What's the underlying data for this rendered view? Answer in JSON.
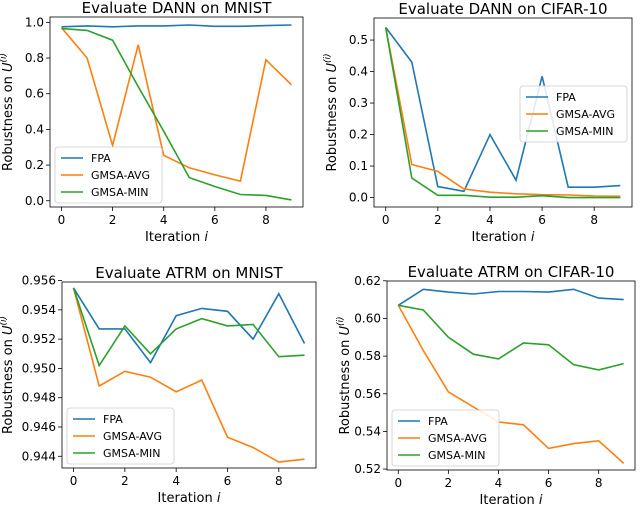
{
  "chart_data": [
    {
      "type": "line",
      "title": "Evaluate DANN on MNIST",
      "xlabel": "Iteration i",
      "ylabel": "Robustness on U^(i)",
      "x": [
        0,
        1,
        2,
        3,
        4,
        5,
        6,
        7,
        8,
        9
      ],
      "xlim": [
        -0.45,
        9.45
      ],
      "ylim": [
        -0.035,
        1.03
      ],
      "xticks": [
        0,
        2,
        4,
        6,
        8
      ],
      "yticks": [
        0.0,
        0.2,
        0.4,
        0.6,
        0.8,
        1.0
      ],
      "ytick_labels": [
        "0.0",
        "0.2",
        "0.4",
        "0.6",
        "0.8",
        "1.0"
      ],
      "legend": "lower-left",
      "series": [
        {
          "name": "FPA",
          "color": "#1f77b4",
          "values": [
            0.975,
            0.98,
            0.975,
            0.98,
            0.98,
            0.985,
            0.978,
            0.978,
            0.982,
            0.985
          ]
        },
        {
          "name": "GMSA-AVG",
          "color": "#ff7f0e",
          "values": [
            0.97,
            0.8,
            0.31,
            0.875,
            0.255,
            0.185,
            0.145,
            0.11,
            0.79,
            0.65
          ]
        },
        {
          "name": "GMSA-MIN",
          "color": "#2ca02c",
          "values": [
            0.965,
            0.955,
            0.9,
            0.64,
            0.39,
            0.13,
            0.08,
            0.035,
            0.03,
            0.005
          ]
        }
      ]
    },
    {
      "type": "line",
      "title": "Evaluate DANN on CIFAR-10",
      "xlabel": "Iteration i",
      "ylabel": "Robustness on U^(i)",
      "x": [
        0,
        1,
        2,
        3,
        4,
        5,
        6,
        7,
        8,
        9
      ],
      "xlim": [
        -0.45,
        9.45
      ],
      "ylim": [
        -0.03,
        0.57
      ],
      "xticks": [
        0,
        2,
        4,
        6,
        8
      ],
      "yticks": [
        0.0,
        0.1,
        0.2,
        0.3,
        0.4,
        0.5
      ],
      "ytick_labels": [
        "0.0",
        "0.1",
        "0.2",
        "0.3",
        "0.4",
        "0.5"
      ],
      "legend": "center-right",
      "series": [
        {
          "name": "FPA",
          "color": "#1f77b4",
          "values": [
            0.54,
            0.43,
            0.035,
            0.02,
            0.2,
            0.055,
            0.385,
            0.033,
            0.033,
            0.038
          ]
        },
        {
          "name": "GMSA-AVG",
          "color": "#ff7f0e",
          "values": [
            0.54,
            0.105,
            0.083,
            0.027,
            0.017,
            0.012,
            0.009,
            0.008,
            0.005,
            0.004
          ]
        },
        {
          "name": "GMSA-MIN",
          "color": "#2ca02c",
          "values": [
            0.54,
            0.062,
            0.007,
            0.007,
            0.001,
            0.001,
            0.006,
            0.0,
            0.0,
            0.0
          ]
        }
      ]
    },
    {
      "type": "line",
      "title": "Evaluate ATRM on MNIST",
      "xlabel": "Iteration i",
      "ylabel": "Robustness on U^(i)",
      "x": [
        0,
        1,
        2,
        3,
        4,
        5,
        6,
        7,
        8,
        9
      ],
      "xlim": [
        -0.45,
        9.45
      ],
      "ylim": [
        0.9432,
        0.9559
      ],
      "xticks": [
        0,
        2,
        4,
        6,
        8
      ],
      "yticks": [
        0.944,
        0.946,
        0.948,
        0.95,
        0.952,
        0.954,
        0.956
      ],
      "ytick_labels": [
        "0.944",
        "0.946",
        "0.948",
        "0.950",
        "0.952",
        "0.954",
        "0.956"
      ],
      "legend": "lower-left",
      "series": [
        {
          "name": "FPA",
          "color": "#1f77b4",
          "values": [
            0.9555,
            0.9527,
            0.9527,
            0.9504,
            0.9536,
            0.9541,
            0.9539,
            0.952,
            0.9551,
            0.9517
          ]
        },
        {
          "name": "GMSA-AVG",
          "color": "#ff7f0e",
          "values": [
            0.9555,
            0.9488,
            0.9498,
            0.9494,
            0.9484,
            0.9492,
            0.9453,
            0.9446,
            0.9436,
            0.9438
          ]
        },
        {
          "name": "GMSA-MIN",
          "color": "#2ca02c",
          "values": [
            0.9555,
            0.9502,
            0.9529,
            0.951,
            0.9527,
            0.9534,
            0.9529,
            0.953,
            0.9508,
            0.9509
          ]
        }
      ]
    },
    {
      "type": "line",
      "title": "Evaluate ATRM on CIFAR-10",
      "xlabel": "Iteration i",
      "ylabel": "Robustness on U^(i)",
      "x": [
        0,
        1,
        2,
        3,
        4,
        5,
        6,
        7,
        8,
        9
      ],
      "xlim": [
        -0.45,
        9.45
      ],
      "ylim": [
        0.5195,
        0.6199
      ],
      "xticks": [
        0,
        2,
        4,
        6,
        8
      ],
      "yticks": [
        0.52,
        0.54,
        0.56,
        0.58,
        0.6,
        0.62
      ],
      "ytick_labels": [
        "0.52",
        "0.54",
        "0.56",
        "0.58",
        "0.60",
        "0.62"
      ],
      "legend": "lower-left",
      "series": [
        {
          "name": "FPA",
          "color": "#1f77b4",
          "values": [
            0.607,
            0.6155,
            0.614,
            0.613,
            0.6143,
            0.6143,
            0.614,
            0.6155,
            0.6108,
            0.61
          ]
        },
        {
          "name": "GMSA-AVG",
          "color": "#ff7f0e",
          "values": [
            0.607,
            0.583,
            0.561,
            0.553,
            0.545,
            0.5435,
            0.531,
            0.5335,
            0.535,
            0.523
          ]
        },
        {
          "name": "GMSA-MIN",
          "color": "#2ca02c",
          "values": [
            0.607,
            0.6045,
            0.59,
            0.581,
            0.5785,
            0.587,
            0.586,
            0.5755,
            0.5727,
            0.576
          ]
        }
      ]
    }
  ]
}
